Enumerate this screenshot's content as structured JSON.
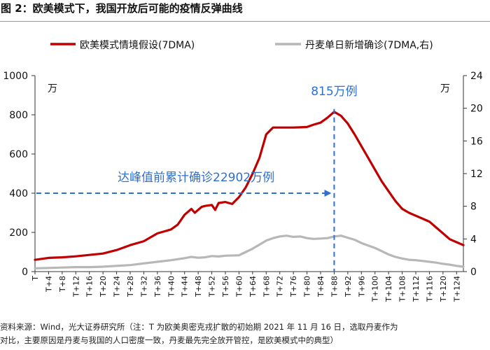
{
  "title": "图 2：欧美模式下，我国开放后可能的疫情反弹曲线",
  "footnote": {
    "line1": "资料来源：Wind，光大证券研究所（注：T 为欧美奥密克戎扩散的初始期 2021 年 11 月 16 日，选取丹麦作为",
    "line2": "对比，主要原因是丹麦与我国的人口密度一致，丹麦最先完全放开管控，是欧美模式中的典型）"
  },
  "chart_data": {
    "type": "line",
    "legend": "top",
    "grid": false,
    "x_categories": [
      "T",
      "T+4",
      "T+8",
      "T+12",
      "T+16",
      "T+20",
      "T+24",
      "T+28",
      "T+32",
      "T+36",
      "T+40",
      "T+44",
      "T+48",
      "T+52",
      "T+56",
      "T+60",
      "T+64",
      "T+68",
      "T+72",
      "T+76",
      "T+80",
      "T+84",
      "T+88",
      "T+92",
      "T+96",
      "T+100",
      "T+104",
      "T+108",
      "T+112",
      "T+116",
      "T+120",
      "T+124"
    ],
    "x_domain": [
      0,
      126
    ],
    "y_left": {
      "unit": "万",
      "range": [
        0,
        1000
      ],
      "ticks": [
        "0",
        "200",
        "400",
        "600",
        "800",
        "1000"
      ]
    },
    "y_right": {
      "unit": "万",
      "range": [
        0,
        24
      ],
      "ticks": [
        "0",
        "4",
        "8",
        "12",
        "16",
        "20",
        "24"
      ]
    },
    "series": [
      {
        "name": "欧美模式情境假设(7DMA)",
        "axis": "left",
        "color": "#c00000",
        "x": [
          0,
          4,
          8,
          12,
          16,
          20,
          24,
          28,
          32,
          34,
          36,
          38,
          40,
          42,
          44,
          46,
          47,
          48,
          49,
          50,
          52,
          53,
          54,
          56,
          58,
          60,
          62,
          64,
          66,
          68,
          70,
          72,
          74,
          76,
          78,
          80,
          82,
          84,
          86,
          88,
          90,
          92,
          94,
          96,
          98,
          100,
          102,
          104,
          106,
          108,
          110,
          112,
          114,
          116,
          118,
          120,
          122,
          124,
          126
        ],
        "y": [
          60,
          70,
          73,
          78,
          85,
          92,
          110,
          135,
          155,
          175,
          195,
          205,
          215,
          240,
          290,
          320,
          300,
          315,
          330,
          335,
          340,
          315,
          350,
          355,
          345,
          380,
          430,
          500,
          580,
          700,
          735,
          735,
          735,
          735,
          736,
          738,
          750,
          760,
          785,
          815,
          795,
          755,
          700,
          640,
          580,
          520,
          460,
          410,
          360,
          320,
          300,
          285,
          270,
          255,
          225,
          195,
          165,
          150,
          135
        ]
      },
      {
        "name": "丹麦单日新增确诊(7DMA,右)",
        "axis": "right",
        "color": "#b7b7b7",
        "x": [
          0,
          4,
          8,
          12,
          16,
          20,
          24,
          28,
          32,
          36,
          40,
          44,
          46,
          48,
          50,
          52,
          54,
          56,
          60,
          62,
          64,
          66,
          68,
          70,
          72,
          74,
          76,
          78,
          80,
          82,
          84,
          86,
          88,
          90,
          92,
          94,
          96,
          98,
          100,
          102,
          104,
          106,
          108,
          110,
          112,
          114,
          116,
          118,
          120,
          122,
          124,
          126
        ],
        "y": [
          0.4,
          0.45,
          0.5,
          0.55,
          0.55,
          0.6,
          0.7,
          0.8,
          1.0,
          1.2,
          1.4,
          1.65,
          1.8,
          1.7,
          1.75,
          1.9,
          1.85,
          1.95,
          2.0,
          2.4,
          2.8,
          3.3,
          3.8,
          4.1,
          4.3,
          4.4,
          4.25,
          4.3,
          4.1,
          4.0,
          4.05,
          4.1,
          4.3,
          4.4,
          4.15,
          3.9,
          3.5,
          3.2,
          2.9,
          2.5,
          2.1,
          1.8,
          1.6,
          1.45,
          1.4,
          1.3,
          1.2,
          1.1,
          0.95,
          0.85,
          0.7,
          0.6
        ]
      }
    ],
    "annotations": [
      {
        "text": "815万例",
        "x": 88,
        "y": 815,
        "axis": "left",
        "color": "#2f6fd0",
        "kind": "vertical-dashed-at-peak"
      },
      {
        "text": "达峰值前累计确诊22902万例",
        "x_start": 0,
        "x_end": 88,
        "y": 400,
        "axis": "left",
        "color": "#2f6fd0",
        "kind": "horizontal-dashed-arrow"
      }
    ]
  }
}
